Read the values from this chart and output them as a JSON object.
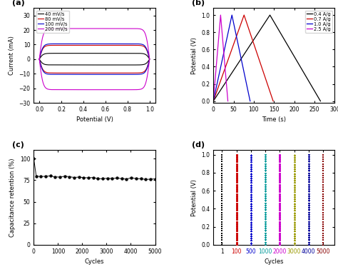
{
  "panel_a": {
    "title": "(a)",
    "xlabel": "Potential (V)",
    "ylabel": "Current (mA)",
    "xlim": [
      -0.05,
      1.05
    ],
    "ylim": [
      -30,
      35
    ],
    "yticks": [
      -30,
      -20,
      -10,
      0,
      10,
      20,
      30
    ],
    "xticks": [
      0.0,
      0.2,
      0.4,
      0.6,
      0.8,
      1.0
    ],
    "curves": [
      {
        "label": "40 mV/s",
        "color": "#000000",
        "amplitude": 4.0
      },
      {
        "label": "80 mV/s",
        "color": "#cc0000",
        "amplitude": 9.5
      },
      {
        "label": "100 mV/s",
        "color": "#0000cc",
        "amplitude": 10.5
      },
      {
        "label": "200 mV/s",
        "color": "#cc00cc",
        "amplitude": 21.0
      }
    ]
  },
  "panel_b": {
    "title": "(b)",
    "xlabel": "Time (s)",
    "ylabel": "Potential (V)",
    "xlim": [
      0,
      300
    ],
    "ylim": [
      -0.02,
      1.08
    ],
    "xticks": [
      0,
      50,
      100,
      150,
      200,
      250,
      300
    ],
    "yticks": [
      0.0,
      0.2,
      0.4,
      0.6,
      0.8,
      1.0
    ],
    "curves": [
      {
        "label": "0.4 A/g",
        "color": "#000000",
        "t_up": 140,
        "t_down": 265
      },
      {
        "label": "0.7 A/g",
        "color": "#cc0000",
        "t_up": 76,
        "t_down": 148
      },
      {
        "label": "1.0 A/g",
        "color": "#0000cc",
        "t_up": 46,
        "t_down": 91
      },
      {
        "label": "2.5 A/g",
        "color": "#cc00cc",
        "t_up": 18,
        "t_down": 36
      }
    ]
  },
  "panel_c": {
    "title": "(c)",
    "xlabel": "Cycles",
    "ylabel": "Capacitance retention (%)",
    "xlim": [
      0,
      5000
    ],
    "ylim": [
      0,
      110
    ],
    "yticks": [
      0,
      25,
      50,
      75,
      100
    ],
    "xticks": [
      0,
      1000,
      2000,
      3000,
      4000,
      5000
    ],
    "color": "#111111",
    "steady_value": 79.5,
    "num_points": 26,
    "end_value": 76.5
  },
  "panel_d": {
    "title": "(d)",
    "xlabel": "Cycles",
    "ylabel": "Potential (V)",
    "ylim": [
      0.0,
      1.05
    ],
    "yticks": [
      0.0,
      0.2,
      0.4,
      0.6,
      0.8,
      1.0
    ],
    "xtick_labels": [
      "1",
      "100",
      "500",
      "1000",
      "2000",
      "3000",
      "4000",
      "5000"
    ],
    "xtick_colors": [
      "#000000",
      "#cc0000",
      "#0000cc",
      "#009999",
      "#cc00cc",
      "#999900",
      "#000099",
      "#880000"
    ],
    "cycle_groups": [
      {
        "label": "1",
        "color": "#000000",
        "marker": "s"
      },
      {
        "label": "100",
        "color": "#cc0000",
        "marker": "o"
      },
      {
        "label": "500",
        "color": "#0000cc",
        "marker": "^"
      },
      {
        "label": "1000",
        "color": "#009999",
        "marker": "v"
      },
      {
        "label": "2000",
        "color": "#cc00cc",
        "marker": "o"
      },
      {
        "label": "3000",
        "color": "#999900",
        "marker": "^"
      },
      {
        "label": "4000",
        "color": "#000099",
        "marker": "v"
      },
      {
        "label": "5000",
        "color": "#880000",
        "marker": "s"
      }
    ]
  }
}
